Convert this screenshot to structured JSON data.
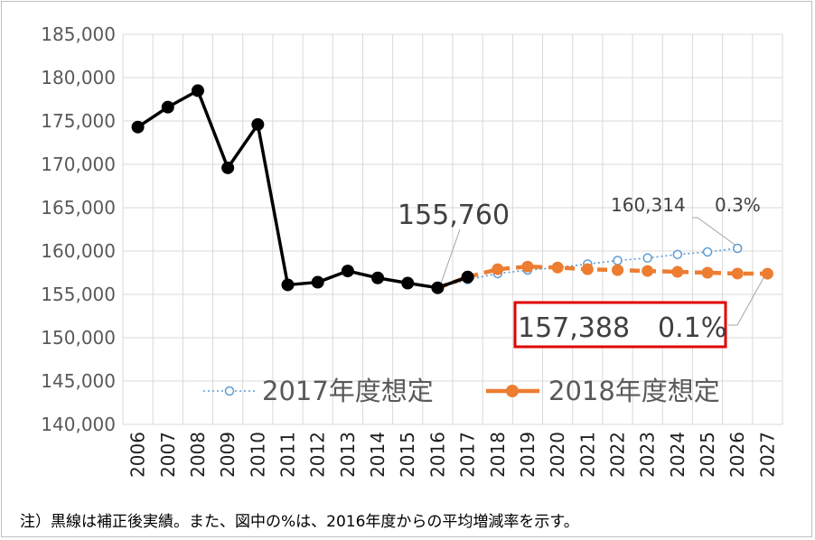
{
  "chart_data": {
    "type": "line",
    "categories": [
      "2006",
      "2007",
      "2008",
      "2009",
      "2010",
      "2011",
      "2012",
      "2013",
      "2014",
      "2015",
      "2016",
      "2017",
      "2018",
      "2019",
      "2020",
      "2021",
      "2022",
      "2023",
      "2024",
      "2025",
      "2026",
      "2027"
    ],
    "ylim": [
      140000,
      185000
    ],
    "yticks": [
      "140,000",
      "145,000",
      "150,000",
      "155,000",
      "160,000",
      "165,000",
      "170,000",
      "175,000",
      "180,000",
      "185,000"
    ],
    "grid": true,
    "legend_position": "bottom-center",
    "series": [
      {
        "values": [
          174300,
          176600,
          178500,
          169600,
          174600,
          156100,
          156400,
          157700,
          156900,
          156300,
          155760,
          157000,
          null,
          null,
          null,
          null,
          null,
          null,
          null,
          null,
          null,
          null
        ],
        "color": "#000000"
      },
      {
        "name": "2017年度想定",
        "values": [
          null,
          null,
          null,
          null,
          null,
          null,
          null,
          null,
          null,
          null,
          155760,
          156700,
          157400,
          157800,
          158100,
          158500,
          158900,
          159200,
          159600,
          159900,
          160314,
          null
        ],
        "color": "#5b9bd5"
      },
      {
        "name": "2018年度想定",
        "values": [
          null,
          null,
          null,
          null,
          null,
          null,
          null,
          null,
          null,
          null,
          155760,
          157000,
          157900,
          158200,
          158100,
          157900,
          157800,
          157700,
          157600,
          157500,
          157400,
          157388
        ],
        "color": "#ed7d31"
      }
    ],
    "annotations": {
      "last_actual": "155,760",
      "plan_2017_value": "160,314",
      "plan_2017_rate": "0.3%",
      "plan_2018_value": "157,388",
      "plan_2018_rate": "0.1%"
    }
  },
  "note": "注）黒線は補正後実績。また、図中の%は、2016年度からの平均増減率を示す。"
}
